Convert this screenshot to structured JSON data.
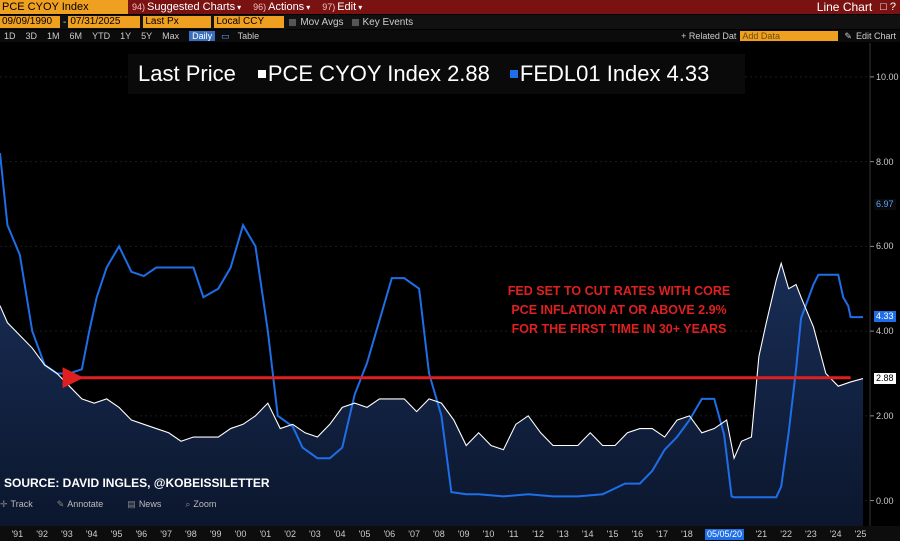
{
  "toolbar": {
    "ticker": "PCE CYOY Index",
    "menus": [
      {
        "num": "94)",
        "label": "Suggested Charts"
      },
      {
        "num": "96)",
        "label": "Actions"
      },
      {
        "num": "97)",
        "label": "Edit"
      }
    ],
    "chart_type": "Line Chart",
    "window_controls": "□ ?"
  },
  "settings": {
    "start_date": "09/09/1990",
    "end_date": "07/31/2025",
    "field": "Last Px",
    "currency": "Local CCY",
    "mov_avgs": "Mov Avgs",
    "key_events": "Key Events"
  },
  "periods": [
    "1D",
    "3D",
    "1M",
    "6M",
    "YTD",
    "1Y",
    "5Y",
    "Max"
  ],
  "frequency": "Daily",
  "table_label": "Table",
  "related_data": "+ Related Dat",
  "add_data_placeholder": "Add Data",
  "edit_chart": "Edit Chart",
  "legend": {
    "last_price": "Last Price",
    "series1": "PCE CYOY Index",
    "series1_value": "2.88",
    "series2": "FEDL01 Index",
    "series2_value": "4.33"
  },
  "annotation": [
    "FED SET TO CUT RATES WITH CORE",
    "PCE INFLATION AT OR ABOVE 2.9%",
    "FOR THE FIRST TIME IN 30+ YEARS"
  ],
  "source": "SOURCE: DAVID INGLES, @KOBEISSILETTER",
  "bottom_tools": [
    "Track",
    "Annotate",
    "News",
    "Zoom"
  ],
  "cursor_date": "05/05/20",
  "colors": {
    "pce": "#ffffff",
    "fed": "#1e6ee8",
    "annotation": "#e02020",
    "header": "#7a1212",
    "field": "#f0a020"
  },
  "chart_data": {
    "type": "line",
    "title": "Last Price",
    "ylim": [
      -0.6,
      10.8
    ],
    "yticks": [
      "10.00",
      "8.00",
      "6.00",
      "4.00",
      "2.00",
      "0.00"
    ],
    "xticks": [
      "'91",
      "'92",
      "'93",
      "'94",
      "'95",
      "'96",
      "'97",
      "'98",
      "'99",
      "'00",
      "'01",
      "'02",
      "'03",
      "'04",
      "'05",
      "'06",
      "'07",
      "'08",
      "'09",
      "'10",
      "'11",
      "'12",
      "'13",
      "'14",
      "'15",
      "'16",
      "'17",
      "'18",
      "'19",
      "'21",
      "'22",
      "'23",
      "'24",
      "'25"
    ],
    "series": [
      {
        "name": "PCE CYOY Index",
        "last": 2.88,
        "x": [
          1990.7,
          1991.0,
          1991.5,
          1992.0,
          1992.5,
          1993.0,
          1993.5,
          1994.0,
          1994.5,
          1995.0,
          1995.5,
          1996.0,
          1996.5,
          1997.0,
          1997.5,
          1998.0,
          1998.5,
          1999.0,
          1999.5,
          2000.0,
          2000.5,
          2001.0,
          2001.5,
          2002.0,
          2002.5,
          2003.0,
          2003.5,
          2004.0,
          2004.5,
          2005.0,
          2005.5,
          2006.0,
          2006.5,
          2007.0,
          2007.5,
          2008.0,
          2008.5,
          2009.0,
          2009.5,
          2010.0,
          2010.5,
          2011.0,
          2011.5,
          2012.0,
          2012.5,
          2013.0,
          2013.5,
          2014.0,
          2014.5,
          2015.0,
          2015.5,
          2016.0,
          2016.5,
          2017.0,
          2017.5,
          2018.0,
          2018.5,
          2019.0,
          2019.5,
          2020.0,
          2020.3,
          2020.6,
          2021.0,
          2021.3,
          2021.6,
          2022.0,
          2022.2,
          2022.5,
          2022.8,
          2023.0,
          2023.5,
          2024.0,
          2024.5,
          2025.0,
          2025.5
        ],
        "values": [
          4.6,
          4.2,
          3.9,
          3.6,
          3.2,
          3.0,
          2.7,
          2.4,
          2.3,
          2.4,
          2.2,
          1.9,
          1.8,
          1.7,
          1.6,
          1.4,
          1.5,
          1.5,
          1.5,
          1.7,
          1.8,
          2.0,
          2.3,
          1.7,
          1.8,
          1.6,
          1.5,
          1.8,
          2.2,
          2.3,
          2.2,
          2.4,
          2.4,
          2.4,
          2.1,
          2.4,
          2.3,
          1.9,
          1.3,
          1.6,
          1.3,
          1.2,
          1.8,
          2.0,
          1.6,
          1.3,
          1.3,
          1.3,
          1.6,
          1.3,
          1.3,
          1.6,
          1.7,
          1.7,
          1.5,
          1.9,
          2.0,
          1.6,
          1.7,
          1.9,
          1.0,
          1.4,
          1.5,
          3.4,
          4.2,
          5.2,
          5.6,
          5.0,
          5.1,
          4.8,
          4.1,
          3.0,
          2.7,
          2.8,
          2.88
        ]
      },
      {
        "name": "FEDL01 Index",
        "last": 4.33,
        "x": [
          1990.7,
          1991.0,
          1991.5,
          1992.0,
          1992.5,
          1993.0,
          1993.5,
          1994.0,
          1994.3,
          1994.6,
          1995.0,
          1995.5,
          1996.0,
          1996.5,
          1997.0,
          1997.5,
          1998.0,
          1998.5,
          1998.9,
          1999.5,
          2000.0,
          2000.5,
          2001.0,
          2001.5,
          2001.9,
          2002.5,
          2002.9,
          2003.5,
          2004.0,
          2004.5,
          2005.0,
          2005.5,
          2006.0,
          2006.5,
          2007.0,
          2007.6,
          2008.0,
          2008.5,
          2008.9,
          2009.5,
          2010.0,
          2011.0,
          2012.0,
          2013.0,
          2014.0,
          2015.0,
          2015.9,
          2016.5,
          2017.0,
          2017.5,
          2018.0,
          2018.5,
          2019.0,
          2019.5,
          2019.9,
          2020.2,
          2020.3,
          2021.0,
          2022.0,
          2022.2,
          2022.5,
          2022.8,
          2023.0,
          2023.5,
          2023.7,
          2024.0,
          2024.5,
          2024.7,
          2024.9,
          2025.0,
          2025.5
        ],
        "values": [
          8.2,
          6.5,
          5.8,
          4.0,
          3.2,
          3.0,
          3.0,
          3.1,
          4.0,
          4.8,
          5.5,
          6.0,
          5.4,
          5.3,
          5.5,
          5.5,
          5.5,
          5.5,
          4.8,
          5.0,
          5.5,
          6.5,
          6.0,
          4.0,
          2.0,
          1.75,
          1.25,
          1.0,
          1.0,
          1.25,
          2.5,
          3.25,
          4.25,
          5.25,
          5.25,
          5.0,
          3.0,
          2.0,
          0.2,
          0.15,
          0.15,
          0.1,
          0.15,
          0.1,
          0.1,
          0.15,
          0.4,
          0.4,
          0.7,
          1.2,
          1.5,
          1.9,
          2.4,
          2.4,
          1.55,
          0.1,
          0.08,
          0.08,
          0.08,
          0.33,
          1.6,
          3.1,
          4.3,
          5.1,
          5.33,
          5.33,
          5.33,
          4.8,
          4.6,
          4.33,
          4.33
        ]
      }
    ],
    "reference_line": {
      "y": 2.9,
      "from": 1993.9,
      "to": 2025.0,
      "label": "FED SET TO CUT RATES WITH CORE PCE INFLATION AT OR ABOVE 2.9% FOR THE FIRST TIME IN 30+ YEARS"
    },
    "right_tags": [
      {
        "value": "6.97",
        "bg": "#0a0a0a",
        "fg": "#5aa0ff",
        "y": 6.97
      },
      {
        "value": "4.33",
        "bg": "#1e6ee8",
        "fg": "#ffffff",
        "y": 4.33
      },
      {
        "value": "2.88",
        "bg": "#ffffff",
        "fg": "#000000",
        "y": 2.88
      }
    ]
  }
}
